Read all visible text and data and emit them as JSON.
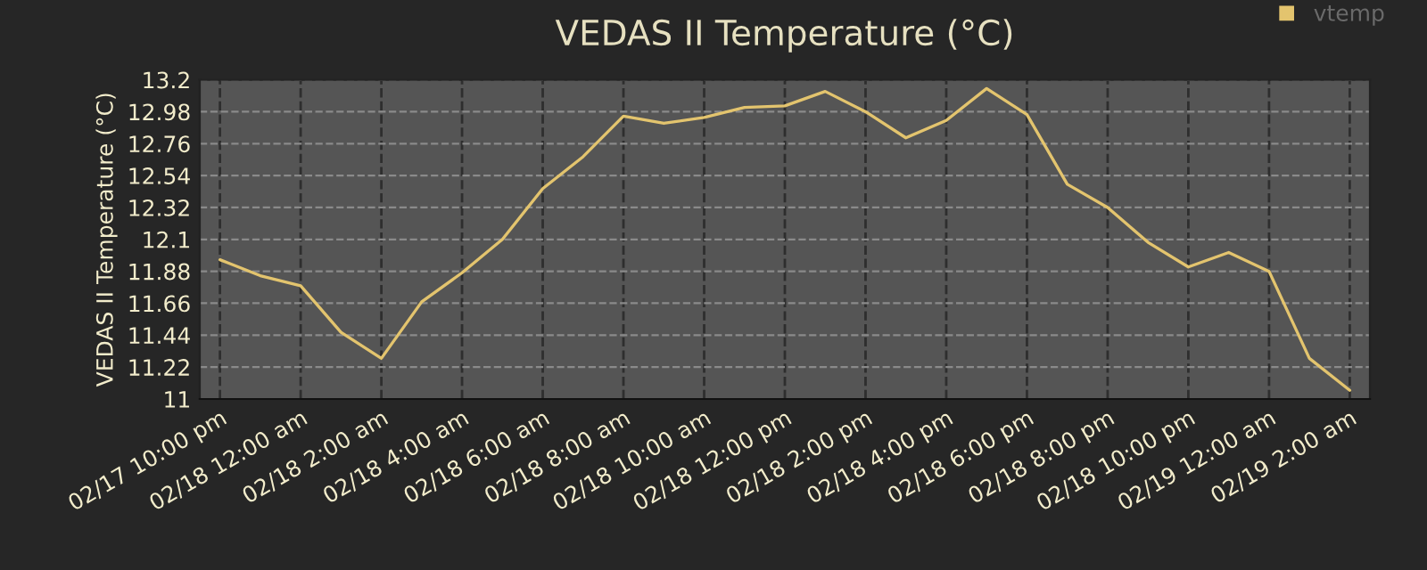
{
  "chart_data": {
    "type": "line",
    "title": "VEDAS II Temperature (°C)",
    "ylabel": "VEDAS II Temperature (°C)",
    "categories": [
      "02/17 10:00 pm",
      null,
      "02/18 12:00 am",
      null,
      "02/18 2:00 am",
      null,
      "02/18 4:00 am",
      null,
      "02/18 6:00 am",
      null,
      "02/18 8:00 am",
      null,
      "02/18 10:00 am",
      null,
      "02/18 12:00 pm",
      null,
      "02/18 2:00 pm",
      null,
      "02/18 4:00 pm",
      null,
      "02/18 6:00 pm",
      null,
      "02/18 8:00 pm",
      null,
      "02/18 10:00 pm",
      null,
      "02/19 12:00 am",
      null,
      "02/19 2:00 am"
    ],
    "series": [
      {
        "name": "vtemp",
        "color": "#e3c46e",
        "values": [
          11.96,
          11.85,
          11.78,
          11.46,
          11.28,
          11.67,
          11.87,
          12.1,
          12.45,
          12.67,
          12.95,
          12.9,
          12.94,
          13.01,
          13.02,
          13.12,
          12.98,
          12.8,
          12.92,
          13.14,
          12.96,
          12.48,
          12.32,
          12.08,
          11.91,
          12.01,
          11.88,
          11.28,
          11.06
        ]
      }
    ],
    "ylim": [
      11,
      13.2
    ],
    "yticks": [
      11,
      11.22,
      11.44,
      11.66,
      11.88,
      12.1,
      12.32,
      12.54,
      12.76,
      12.98,
      13.2
    ],
    "grid": true,
    "legend": "top right",
    "marker": "none",
    "line_style": "solid"
  }
}
